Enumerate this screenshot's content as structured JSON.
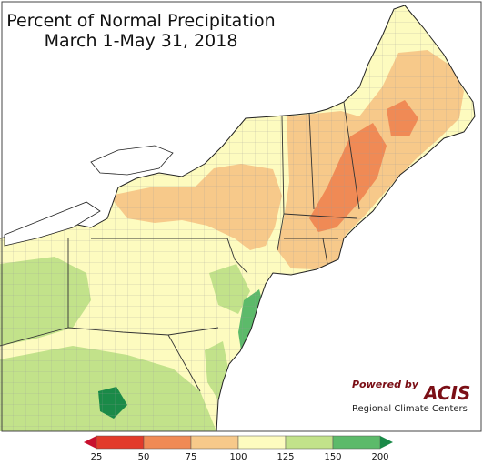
{
  "map": {
    "title_line1": "Percent of Normal Precipitation",
    "title_line2": "March 1-May 31, 2018"
  },
  "branding": {
    "powered_by": "Powered by",
    "logo": "ACIS",
    "org": "Regional Climate Centers"
  },
  "legend": {
    "ticks": [
      "25",
      "50",
      "75",
      "100",
      "125",
      "150",
      "200"
    ],
    "colors": [
      "#c8102e",
      "#e23a2a",
      "#f08a55",
      "#f7c98a",
      "#fdfbbf",
      "#c2e28a",
      "#5cba6a",
      "#1a8a48"
    ]
  },
  "palette": {
    "ocean": "#ffffff",
    "lake": "#ffffff",
    "border": "#222222"
  }
}
